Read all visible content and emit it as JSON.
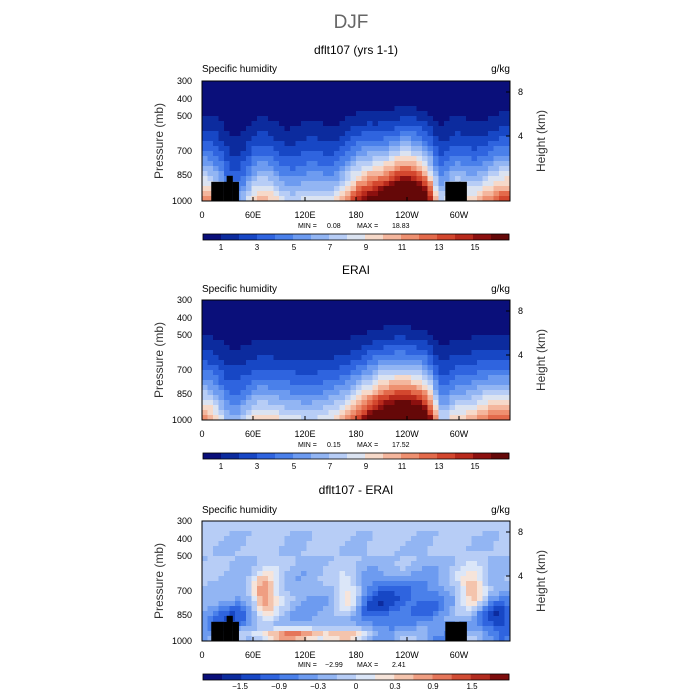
{
  "figure": {
    "title": "DJF"
  },
  "chart_data": [
    {
      "type": "heatmap",
      "title": "dflt107 (yrs 1-1)",
      "left_label": "Specific humidity",
      "right_label": "g/kg",
      "ylabel": "Pressure (mb)",
      "ylabel_right": "Height (km)",
      "y_ticks": [
        "300",
        "400",
        "500",
        "700",
        "850",
        "1000"
      ],
      "y_ticks_right": [
        "8",
        "4"
      ],
      "x_ticks": [
        "0",
        "60E",
        "120E",
        "180",
        "120W",
        "60W"
      ],
      "stats": {
        "min_label": "MIN =",
        "min": "0.08",
        "max_label": "MAX =",
        "max": "18.83"
      },
      "colorbar_labels": [
        "1",
        "3",
        "5",
        "7",
        "9",
        "11",
        "13",
        "15"
      ],
      "terrain": true
    },
    {
      "type": "heatmap",
      "title": "ERAI",
      "left_label": "Specific humidity",
      "right_label": "g/kg",
      "ylabel": "Pressure (mb)",
      "ylabel_right": "Height (km)",
      "y_ticks": [
        "300",
        "400",
        "500",
        "700",
        "850",
        "1000"
      ],
      "y_ticks_right": [
        "8",
        "4"
      ],
      "x_ticks": [
        "0",
        "60E",
        "120E",
        "180",
        "120W",
        "60W"
      ],
      "stats": {
        "min_label": "MIN =",
        "min": "0.15",
        "max_label": "MAX =",
        "max": "17.52"
      },
      "colorbar_labels": [
        "1",
        "3",
        "5",
        "7",
        "9",
        "11",
        "13",
        "15"
      ],
      "terrain": false
    },
    {
      "type": "heatmap",
      "title": "dflt107 - ERAI",
      "left_label": "Specific humidity",
      "right_label": "g/kg",
      "ylabel": "Pressure (mb)",
      "ylabel_right": "Height (km)",
      "y_ticks": [
        "300",
        "400",
        "500",
        "700",
        "850",
        "1000"
      ],
      "y_ticks_right": [
        "8",
        "4"
      ],
      "x_ticks": [
        "0",
        "60E",
        "120E",
        "180",
        "120W",
        "60W"
      ],
      "stats": {
        "min_label": "MIN =",
        "min": "−2.99",
        "max_label": "MAX =",
        "max": "2.41"
      },
      "colorbar_labels": [
        "−1.5",
        "−0.9",
        "−0.3",
        "0",
        "0.3",
        "0.9",
        "1.5"
      ],
      "terrain": true
    }
  ],
  "colors": {
    "abs": [
      "#0a0f7a",
      "#0c2b9e",
      "#1747c5",
      "#2f64df",
      "#4a80ea",
      "#6d9bf0",
      "#92b5f3",
      "#b7cdf6",
      "#dbe3f1",
      "#f6d9c9",
      "#f4b69d",
      "#ee9070",
      "#e36a4b",
      "#d3472e",
      "#b82a1c",
      "#8c100f",
      "#650808"
    ],
    "diff": [
      "#0a0f7a",
      "#0c2b9e",
      "#1747c5",
      "#2f64df",
      "#4a80ea",
      "#6d9bf0",
      "#92b5f3",
      "#b7cdf6",
      "#dbe6f8",
      "#f6e4da",
      "#f4c4ad",
      "#ef9e82",
      "#e5765a",
      "#d14c34",
      "#b22b1f",
      "#7e0d0d"
    ],
    "terrain": "#000000"
  }
}
